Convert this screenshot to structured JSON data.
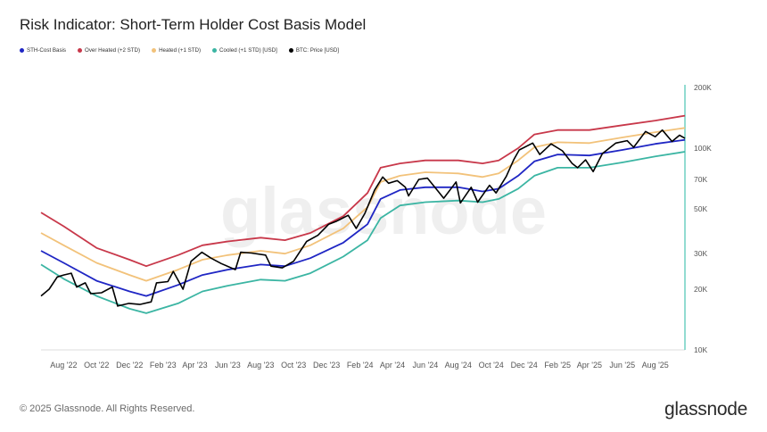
{
  "title": "Risk Indicator: Short-Term Holder Cost Basis Model",
  "legend": [
    {
      "label": "STH-Cost Basis",
      "color": "#1f26c4"
    },
    {
      "label": "Over Heated (+2 STD)",
      "color": "#c8384a"
    },
    {
      "label": "Heated (+1 STD)",
      "color": "#f2c27a"
    },
    {
      "label": "Cooled (+1 STD) [USD]",
      "color": "#3bb5a3"
    },
    {
      "label": "BTC: Price [USD]",
      "color": "#000000"
    }
  ],
  "watermark": "glassnode",
  "footer": {
    "copyright": "© 2025 Glassnode. All Rights Reserved.",
    "logo": "glassnode"
  },
  "chart_data": {
    "type": "line",
    "y_scale": "log",
    "ylim": [
      10000,
      200000
    ],
    "xlim": [
      "2022-06-20",
      "2025-09-25"
    ],
    "x_ticks": [
      {
        "date": "2022-08-01",
        "label": "Aug '22"
      },
      {
        "date": "2022-10-01",
        "label": "Oct '22"
      },
      {
        "date": "2022-12-01",
        "label": "Dec '22"
      },
      {
        "date": "2023-02-01",
        "label": "Feb '23"
      },
      {
        "date": "2023-04-01",
        "label": "Apr '23"
      },
      {
        "date": "2023-06-01",
        "label": "Jun '23"
      },
      {
        "date": "2023-08-01",
        "label": "Aug '23"
      },
      {
        "date": "2023-10-01",
        "label": "Oct '23"
      },
      {
        "date": "2023-12-01",
        "label": "Dec '23"
      },
      {
        "date": "2024-02-01",
        "label": "Feb '24"
      },
      {
        "date": "2024-04-01",
        "label": "Apr '24"
      },
      {
        "date": "2024-06-01",
        "label": "Jun '24"
      },
      {
        "date": "2024-08-01",
        "label": "Aug '24"
      },
      {
        "date": "2024-10-01",
        "label": "Oct '24"
      },
      {
        "date": "2024-12-01",
        "label": "Dec '24"
      },
      {
        "date": "2025-02-01",
        "label": "Feb '25"
      },
      {
        "date": "2025-04-01",
        "label": "Apr '25"
      },
      {
        "date": "2025-06-01",
        "label": "Jun '25"
      },
      {
        "date": "2025-08-01",
        "label": "Aug '25"
      }
    ],
    "y_ticks": [
      {
        "value": 10000,
        "label": "10K"
      },
      {
        "value": 20000,
        "label": "20K"
      },
      {
        "value": 30000,
        "label": "30K"
      },
      {
        "value": 50000,
        "label": "50K"
      },
      {
        "value": 70000,
        "label": "70K"
      },
      {
        "value": 100000,
        "label": "100K"
      },
      {
        "value": 200000,
        "label": "200K"
      }
    ],
    "series": [
      {
        "name": "Over Heated (+2 STD)",
        "color": "#c8384a",
        "points": [
          [
            "2022-06-20",
            48000
          ],
          [
            "2022-08-01",
            41000
          ],
          [
            "2022-10-01",
            32000
          ],
          [
            "2022-12-01",
            28000
          ],
          [
            "2023-01-01",
            26000
          ],
          [
            "2023-03-01",
            29500
          ],
          [
            "2023-04-15",
            33000
          ],
          [
            "2023-06-01",
            34500
          ],
          [
            "2023-08-01",
            36000
          ],
          [
            "2023-09-15",
            35000
          ],
          [
            "2023-11-01",
            38000
          ],
          [
            "2024-01-01",
            46000
          ],
          [
            "2024-02-15",
            60000
          ],
          [
            "2024-03-10",
            80000
          ],
          [
            "2024-04-15",
            84000
          ],
          [
            "2024-06-01",
            87000
          ],
          [
            "2024-08-01",
            87000
          ],
          [
            "2024-09-15",
            84000
          ],
          [
            "2024-10-15",
            87000
          ],
          [
            "2024-11-20",
            100000
          ],
          [
            "2024-12-20",
            117000
          ],
          [
            "2025-02-01",
            123000
          ],
          [
            "2025-04-01",
            123000
          ],
          [
            "2025-06-01",
            130000
          ],
          [
            "2025-08-01",
            137000
          ],
          [
            "2025-09-25",
            145000
          ]
        ]
      },
      {
        "name": "Heated (+1 STD)",
        "color": "#f2c27a",
        "points": [
          [
            "2022-06-20",
            38000
          ],
          [
            "2022-08-01",
            33000
          ],
          [
            "2022-10-01",
            27000
          ],
          [
            "2022-12-01",
            23500
          ],
          [
            "2023-01-01",
            22000
          ],
          [
            "2023-03-01",
            25000
          ],
          [
            "2023-04-15",
            28000
          ],
          [
            "2023-06-01",
            29500
          ],
          [
            "2023-08-01",
            31000
          ],
          [
            "2023-09-15",
            30000
          ],
          [
            "2023-11-01",
            33000
          ],
          [
            "2024-01-01",
            40000
          ],
          [
            "2024-02-15",
            51000
          ],
          [
            "2024-03-10",
            68000
          ],
          [
            "2024-04-15",
            73000
          ],
          [
            "2024-06-01",
            76000
          ],
          [
            "2024-08-01",
            75000
          ],
          [
            "2024-09-15",
            72000
          ],
          [
            "2024-10-15",
            75000
          ],
          [
            "2024-11-20",
            87000
          ],
          [
            "2024-12-20",
            101000
          ],
          [
            "2025-02-01",
            107000
          ],
          [
            "2025-04-01",
            106000
          ],
          [
            "2025-06-01",
            113000
          ],
          [
            "2025-08-01",
            120000
          ],
          [
            "2025-09-25",
            126000
          ]
        ]
      },
      {
        "name": "STH-Cost Basis",
        "color": "#1f26c4",
        "points": [
          [
            "2022-06-20",
            31000
          ],
          [
            "2022-08-01",
            27000
          ],
          [
            "2022-10-01",
            22000
          ],
          [
            "2022-12-01",
            19500
          ],
          [
            "2023-01-01",
            18500
          ],
          [
            "2023-03-01",
            21000
          ],
          [
            "2023-04-15",
            23500
          ],
          [
            "2023-06-01",
            25000
          ],
          [
            "2023-08-01",
            26500
          ],
          [
            "2023-09-15",
            26000
          ],
          [
            "2023-11-01",
            28500
          ],
          [
            "2024-01-01",
            34000
          ],
          [
            "2024-02-15",
            42000
          ],
          [
            "2024-03-10",
            56000
          ],
          [
            "2024-04-15",
            62000
          ],
          [
            "2024-06-01",
            64000
          ],
          [
            "2024-08-01",
            64000
          ],
          [
            "2024-09-15",
            61000
          ],
          [
            "2024-10-15",
            63000
          ],
          [
            "2024-11-20",
            73000
          ],
          [
            "2024-12-20",
            86000
          ],
          [
            "2025-02-01",
            93000
          ],
          [
            "2025-04-01",
            92000
          ],
          [
            "2025-06-01",
            98000
          ],
          [
            "2025-08-01",
            105000
          ],
          [
            "2025-09-25",
            110000
          ]
        ]
      },
      {
        "name": "Cooled (+1 STD) [USD]",
        "color": "#3bb5a3",
        "points": [
          [
            "2022-06-20",
            26500
          ],
          [
            "2022-08-01",
            22500
          ],
          [
            "2022-10-01",
            18500
          ],
          [
            "2022-12-01",
            16000
          ],
          [
            "2023-01-01",
            15200
          ],
          [
            "2023-03-01",
            17000
          ],
          [
            "2023-04-15",
            19500
          ],
          [
            "2023-06-01",
            20800
          ],
          [
            "2023-08-01",
            22300
          ],
          [
            "2023-09-15",
            22000
          ],
          [
            "2023-11-01",
            24000
          ],
          [
            "2024-01-01",
            29000
          ],
          [
            "2024-02-15",
            35000
          ],
          [
            "2024-03-10",
            45000
          ],
          [
            "2024-04-15",
            52000
          ],
          [
            "2024-06-01",
            54000
          ],
          [
            "2024-08-01",
            55000
          ],
          [
            "2024-09-15",
            54000
          ],
          [
            "2024-10-15",
            56000
          ],
          [
            "2024-11-20",
            63000
          ],
          [
            "2024-12-20",
            73000
          ],
          [
            "2025-02-01",
            80000
          ],
          [
            "2025-04-01",
            80000
          ],
          [
            "2025-06-01",
            85000
          ],
          [
            "2025-08-01",
            91000
          ],
          [
            "2025-09-25",
            96000
          ]
        ]
      },
      {
        "name": "BTC: Price [USD]",
        "color": "#000000",
        "points": [
          [
            "2022-06-20",
            18500
          ],
          [
            "2022-07-05",
            20000
          ],
          [
            "2022-07-20",
            23000
          ],
          [
            "2022-08-01",
            23500
          ],
          [
            "2022-08-15",
            24000
          ],
          [
            "2022-08-25",
            20500
          ],
          [
            "2022-09-10",
            21500
          ],
          [
            "2022-09-20",
            19000
          ],
          [
            "2022-10-10",
            19200
          ],
          [
            "2022-10-30",
            20500
          ],
          [
            "2022-11-09",
            16500
          ],
          [
            "2022-11-30",
            17000
          ],
          [
            "2022-12-20",
            16800
          ],
          [
            "2023-01-10",
            17300
          ],
          [
            "2023-01-20",
            21500
          ],
          [
            "2023-02-10",
            21800
          ],
          [
            "2023-02-20",
            24500
          ],
          [
            "2023-03-10",
            20000
          ],
          [
            "2023-03-25",
            27500
          ],
          [
            "2023-04-14",
            30500
          ],
          [
            "2023-05-01",
            28500
          ],
          [
            "2023-05-20",
            26800
          ],
          [
            "2023-06-15",
            25000
          ],
          [
            "2023-06-25",
            30500
          ],
          [
            "2023-07-15",
            30200
          ],
          [
            "2023-08-10",
            29500
          ],
          [
            "2023-08-20",
            26000
          ],
          [
            "2023-09-10",
            25500
          ],
          [
            "2023-10-01",
            27500
          ],
          [
            "2023-10-25",
            34500
          ],
          [
            "2023-11-15",
            37000
          ],
          [
            "2023-12-05",
            42000
          ],
          [
            "2023-12-20",
            43500
          ],
          [
            "2024-01-10",
            46500
          ],
          [
            "2024-01-25",
            40000
          ],
          [
            "2024-02-10",
            47500
          ],
          [
            "2024-02-28",
            62000
          ],
          [
            "2024-03-14",
            72000
          ],
          [
            "2024-03-25",
            67000
          ],
          [
            "2024-04-10",
            69000
          ],
          [
            "2024-04-25",
            64000
          ],
          [
            "2024-05-01",
            58000
          ],
          [
            "2024-05-20",
            70000
          ],
          [
            "2024-06-05",
            71000
          ],
          [
            "2024-06-25",
            61000
          ],
          [
            "2024-07-05",
            56500
          ],
          [
            "2024-07-28",
            68000
          ],
          [
            "2024-08-05",
            53500
          ],
          [
            "2024-08-25",
            64000
          ],
          [
            "2024-09-06",
            54000
          ],
          [
            "2024-09-28",
            65500
          ],
          [
            "2024-10-10",
            60000
          ],
          [
            "2024-10-29",
            72500
          ],
          [
            "2024-11-12",
            88000
          ],
          [
            "2024-11-22",
            98000
          ],
          [
            "2024-12-17",
            106000
          ],
          [
            "2024-12-30",
            93000
          ],
          [
            "2025-01-20",
            105000
          ],
          [
            "2025-02-10",
            97000
          ],
          [
            "2025-02-28",
            84000
          ],
          [
            "2025-03-10",
            80000
          ],
          [
            "2025-03-25",
            87500
          ],
          [
            "2025-04-08",
            76500
          ],
          [
            "2025-04-25",
            94000
          ],
          [
            "2025-05-20",
            106000
          ],
          [
            "2025-06-10",
            109000
          ],
          [
            "2025-06-22",
            101000
          ],
          [
            "2025-07-14",
            121000
          ],
          [
            "2025-08-01",
            114000
          ],
          [
            "2025-08-14",
            123000
          ],
          [
            "2025-09-01",
            108000
          ],
          [
            "2025-09-15",
            116000
          ],
          [
            "2025-09-25",
            112000
          ]
        ]
      }
    ]
  }
}
